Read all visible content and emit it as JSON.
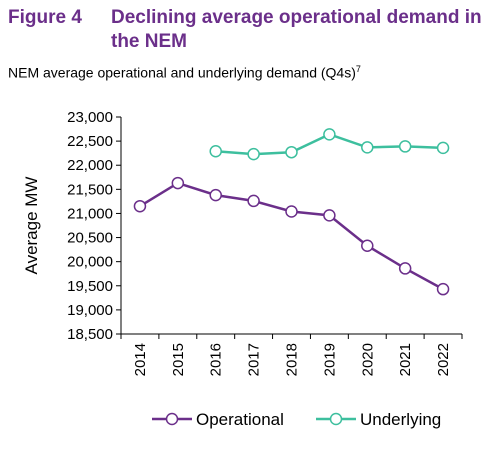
{
  "figure": {
    "label": "Figure 4",
    "title": "Declining average operational demand in the NEM",
    "subtitle": "NEM average operational and underlying demand (Q4s)",
    "subtitle_footnote": "7"
  },
  "chart_data": {
    "type": "line",
    "title": "",
    "xlabel": "",
    "ylabel": "Average MW",
    "categories": [
      "2014",
      "2015",
      "2016",
      "2017",
      "2018",
      "2019",
      "2020",
      "2021",
      "2022"
    ],
    "ylim": [
      18500,
      23000
    ],
    "yticks": [
      18500,
      19000,
      19500,
      20000,
      20500,
      21000,
      21500,
      22000,
      22500,
      23000
    ],
    "ytick_labels": [
      "18,500",
      "19,000",
      "19,500",
      "20,000",
      "20,500",
      "21,000",
      "21,500",
      "22,000",
      "22,500",
      "23,000"
    ],
    "grid": false,
    "legend": "bottom",
    "series": [
      {
        "name": "Operational",
        "color": "#6b2f8a",
        "values": [
          21150,
          21630,
          21380,
          21260,
          21040,
          20960,
          20330,
          19860,
          19430
        ]
      },
      {
        "name": "Underlying",
        "color": "#3dbf9e",
        "values": [
          null,
          null,
          22290,
          22230,
          22270,
          22640,
          22370,
          22390,
          22360
        ]
      }
    ]
  }
}
